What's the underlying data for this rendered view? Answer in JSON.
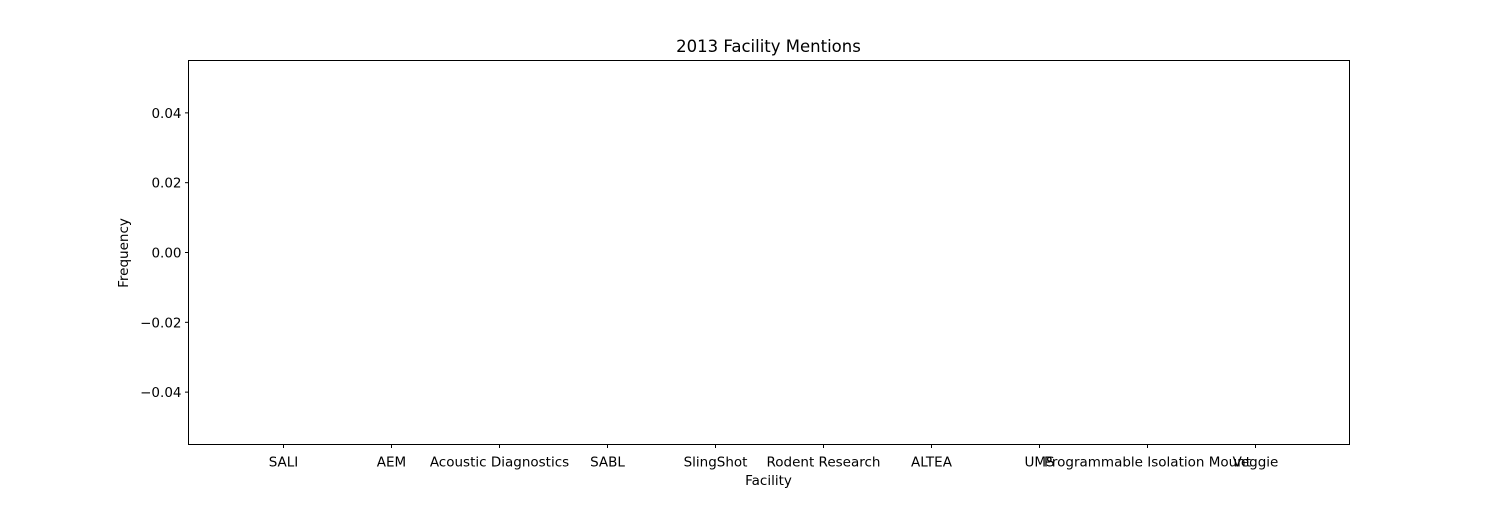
{
  "chart_data": {
    "type": "bar",
    "title": "2013 Facility Mentions",
    "xlabel": "Facility",
    "ylabel": "Frequency",
    "categories": [
      "SALI",
      "AEM",
      "Acoustic Diagnostics",
      "SABL",
      "SlingShot",
      "Rodent Research",
      "ALTEA",
      "UMS",
      "Programmable Isolation Mount",
      "Veggie"
    ],
    "values": [
      0,
      0,
      0,
      0,
      0,
      0,
      0,
      0,
      0,
      0
    ],
    "ylim": [
      -0.055,
      0.055
    ],
    "yticks": [
      -0.04,
      -0.02,
      0.0,
      0.02,
      0.04
    ],
    "ytick_labels": [
      "−0.04",
      "−0.02",
      "0.00",
      "0.02",
      "0.04"
    ],
    "grid": false,
    "bar_color": "#1f77b4"
  }
}
